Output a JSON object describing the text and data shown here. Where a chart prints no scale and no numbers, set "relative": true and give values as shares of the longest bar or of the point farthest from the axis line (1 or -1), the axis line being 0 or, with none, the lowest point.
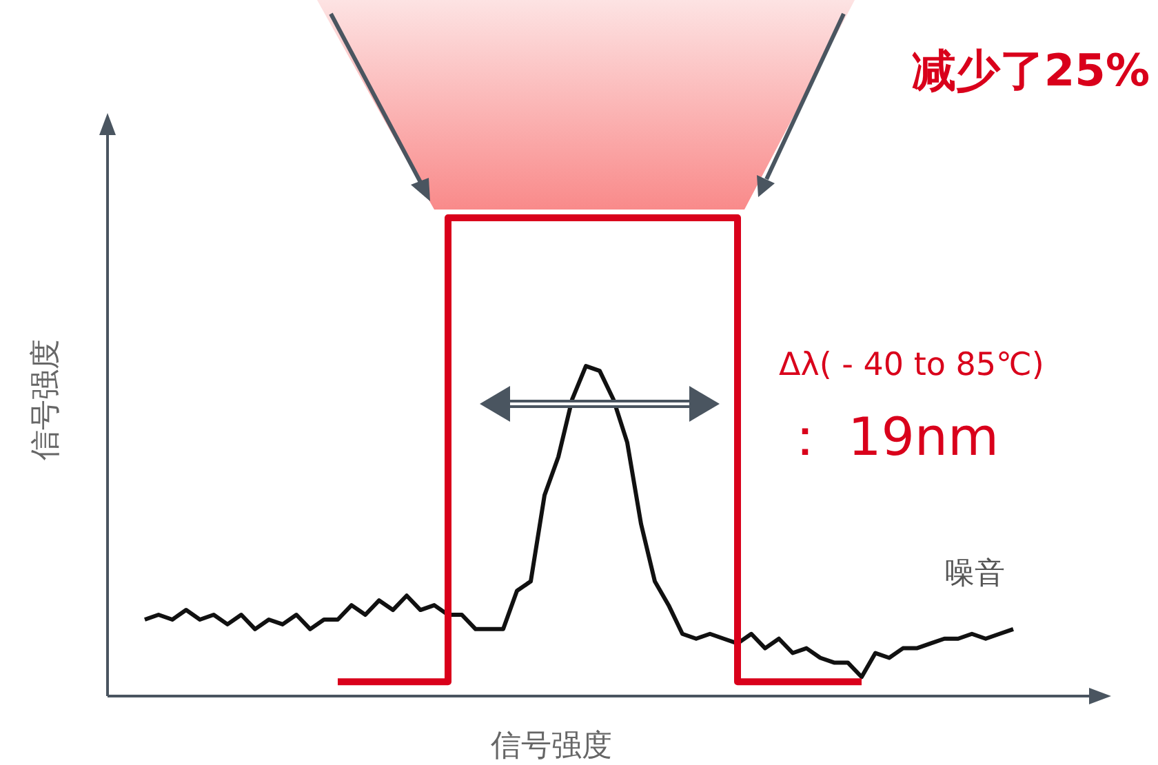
{
  "chart_data": {
    "type": "line",
    "relative": true,
    "xlabel": "信号强度",
    "ylabel": "信号强度",
    "categories": [
      null,
      null,
      null,
      null,
      null,
      null,
      null,
      null,
      null,
      null,
      null,
      null,
      null,
      null,
      null,
      null,
      null,
      null,
      null,
      null,
      null,
      null,
      null,
      null,
      null,
      null,
      null,
      null,
      null,
      null,
      null,
      null,
      null,
      null,
      null,
      null,
      null,
      null,
      null,
      null,
      null,
      null,
      null,
      null,
      null,
      null,
      null,
      null,
      null,
      null,
      null,
      null,
      null,
      null,
      null,
      null,
      null,
      null,
      null,
      null,
      null,
      null,
      null,
      null
    ],
    "series": [
      {
        "color": "#111111",
        "values": [
          0.16,
          0.17,
          0.16,
          0.18,
          0.16,
          0.17,
          0.15,
          0.17,
          0.14,
          0.16,
          0.15,
          0.17,
          0.14,
          0.16,
          0.16,
          0.19,
          0.17,
          0.2,
          0.18,
          0.21,
          0.18,
          0.19,
          0.17,
          0.17,
          0.14,
          0.14,
          0.14,
          0.22,
          0.24,
          0.42,
          0.5,
          0.62,
          0.69,
          0.68,
          0.62,
          0.53,
          0.36,
          0.24,
          0.19,
          0.13,
          0.12,
          0.13,
          0.12,
          0.11,
          0.13,
          0.1,
          0.12,
          0.09,
          0.1,
          0.08,
          0.07,
          0.07,
          0.04,
          0.09,
          0.08,
          0.1,
          0.1,
          0.11,
          0.12,
          0.12,
          0.13,
          0.12,
          0.13,
          0.14
        ]
      },
      {
        "type": "step",
        "color": "#d9001b",
        "values": [
          null,
          null,
          null,
          null,
          null,
          null,
          null,
          null,
          null,
          null,
          null,
          null,
          null,
          null,
          0.03,
          0.03,
          0.03,
          0.03,
          0.03,
          0.03,
          0.03,
          0.03,
          1,
          1,
          1,
          1,
          1,
          1,
          1,
          1,
          1,
          1,
          1,
          1,
          1,
          1,
          1,
          1,
          1,
          1,
          1,
          1,
          1,
          0.03,
          0.03,
          0.03,
          0.03,
          0.03,
          0.03,
          0.03,
          0.03,
          0.03,
          0.03,
          null,
          null,
          null,
          null,
          null,
          null,
          null,
          null,
          null,
          null,
          null
        ]
      }
    ],
    "marker": "none",
    "annotations": [
      "减少了25%",
      "Δλ( - 40 to 85℃)",
      "： 19nm",
      "噪音"
    ]
  }
}
